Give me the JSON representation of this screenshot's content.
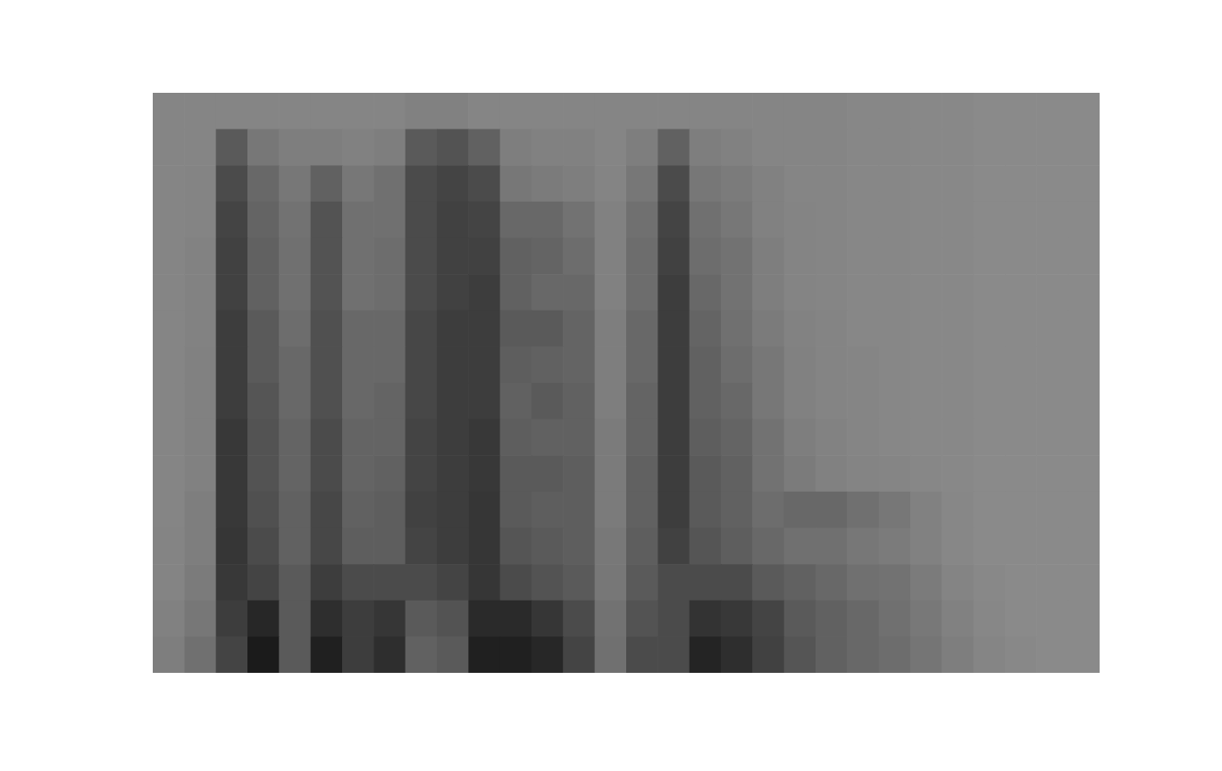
{
  "chart_data": {
    "type": "heatmap",
    "tick_labels": false,
    "zlim": [
      0,
      100
    ],
    "cells": [
      [
        15,
        15,
        15,
        15,
        15,
        15,
        15,
        15,
        18,
        18,
        15,
        15,
        15,
        15,
        15,
        15,
        15,
        15,
        15,
        15,
        15,
        15,
        14,
        14,
        13,
        13,
        12,
        12,
        12,
        12
      ],
      [
        15,
        15,
        45,
        25,
        20,
        20,
        18,
        20,
        45,
        50,
        40,
        20,
        18,
        18,
        15,
        20,
        40,
        20,
        18,
        15,
        15,
        15,
        14,
        14,
        13,
        13,
        12,
        12,
        12,
        12
      ],
      [
        15,
        16,
        55,
        35,
        25,
        40,
        25,
        30,
        55,
        60,
        55,
        25,
        22,
        20,
        16,
        25,
        55,
        25,
        22,
        18,
        15,
        15,
        14,
        14,
        13,
        13,
        12,
        12,
        12,
        12
      ],
      [
        15,
        16,
        60,
        38,
        28,
        50,
        30,
        30,
        55,
        62,
        60,
        35,
        35,
        28,
        18,
        30,
        60,
        30,
        25,
        18,
        16,
        15,
        14,
        14,
        13,
        13,
        12,
        12,
        12,
        12
      ],
      [
        15,
        17,
        62,
        40,
        30,
        50,
        30,
        32,
        55,
        62,
        62,
        40,
        38,
        32,
        18,
        32,
        62,
        32,
        28,
        20,
        16,
        15,
        14,
        14,
        13,
        13,
        12,
        12,
        12,
        12
      ],
      [
        15,
        17,
        62,
        40,
        30,
        50,
        30,
        32,
        55,
        62,
        65,
        40,
        35,
        35,
        18,
        32,
        65,
        35,
        28,
        20,
        16,
        15,
        14,
        14,
        13,
        13,
        12,
        12,
        12,
        12
      ],
      [
        15,
        17,
        65,
        45,
        32,
        52,
        35,
        35,
        58,
        65,
        65,
        45,
        45,
        38,
        20,
        35,
        65,
        38,
        30,
        22,
        17,
        16,
        14,
        14,
        13,
        13,
        12,
        12,
        12,
        12
      ],
      [
        15,
        18,
        65,
        45,
        35,
        52,
        35,
        35,
        58,
        65,
        65,
        42,
        40,
        38,
        20,
        35,
        65,
        40,
        32,
        25,
        18,
        16,
        15,
        14,
        13,
        13,
        12,
        12,
        12,
        12
      ],
      [
        15,
        18,
        65,
        48,
        35,
        52,
        35,
        38,
        58,
        65,
        65,
        40,
        45,
        40,
        20,
        38,
        65,
        40,
        35,
        25,
        18,
        16,
        15,
        14,
        13,
        13,
        12,
        12,
        12,
        12
      ],
      [
        15,
        18,
        68,
        50,
        38,
        55,
        38,
        38,
        60,
        65,
        68,
        42,
        40,
        40,
        22,
        38,
        65,
        42,
        38,
        28,
        20,
        17,
        15,
        14,
        13,
        13,
        12,
        12,
        12,
        12
      ],
      [
        15,
        18,
        68,
        50,
        38,
        55,
        38,
        40,
        60,
        65,
        68,
        45,
        45,
        42,
        22,
        40,
        65,
        45,
        40,
        28,
        22,
        18,
        16,
        15,
        14,
        13,
        12,
        12,
        12,
        12
      ],
      [
        15,
        20,
        68,
        52,
        40,
        58,
        40,
        42,
        62,
        65,
        70,
        45,
        42,
        42,
        22,
        40,
        65,
        45,
        40,
        32,
        35,
        35,
        30,
        25,
        18,
        14,
        12,
        12,
        12,
        12
      ],
      [
        16,
        20,
        70,
        55,
        40,
        58,
        42,
        42,
        60,
        65,
        70,
        48,
        45,
        42,
        24,
        42,
        62,
        48,
        42,
        35,
        30,
        30,
        25,
        22,
        18,
        14,
        12,
        12,
        12,
        12
      ],
      [
        16,
        22,
        68,
        60,
        45,
        65,
        55,
        55,
        55,
        60,
        70,
        55,
        50,
        45,
        25,
        45,
        55,
        55,
        55,
        45,
        40,
        35,
        30,
        28,
        22,
        16,
        13,
        12,
        12,
        12
      ],
      [
        18,
        25,
        65,
        80,
        45,
        75,
        65,
        70,
        45,
        50,
        78,
        78,
        70,
        55,
        28,
        50,
        55,
        72,
        68,
        60,
        45,
        40,
        35,
        30,
        24,
        18,
        14,
        12,
        12,
        12
      ],
      [
        20,
        30,
        60,
        88,
        45,
        85,
        65,
        75,
        40,
        45,
        85,
        85,
        80,
        60,
        30,
        55,
        55,
        82,
        75,
        62,
        48,
        40,
        35,
        32,
        26,
        20,
        15,
        13,
        12,
        12
      ]
    ]
  }
}
